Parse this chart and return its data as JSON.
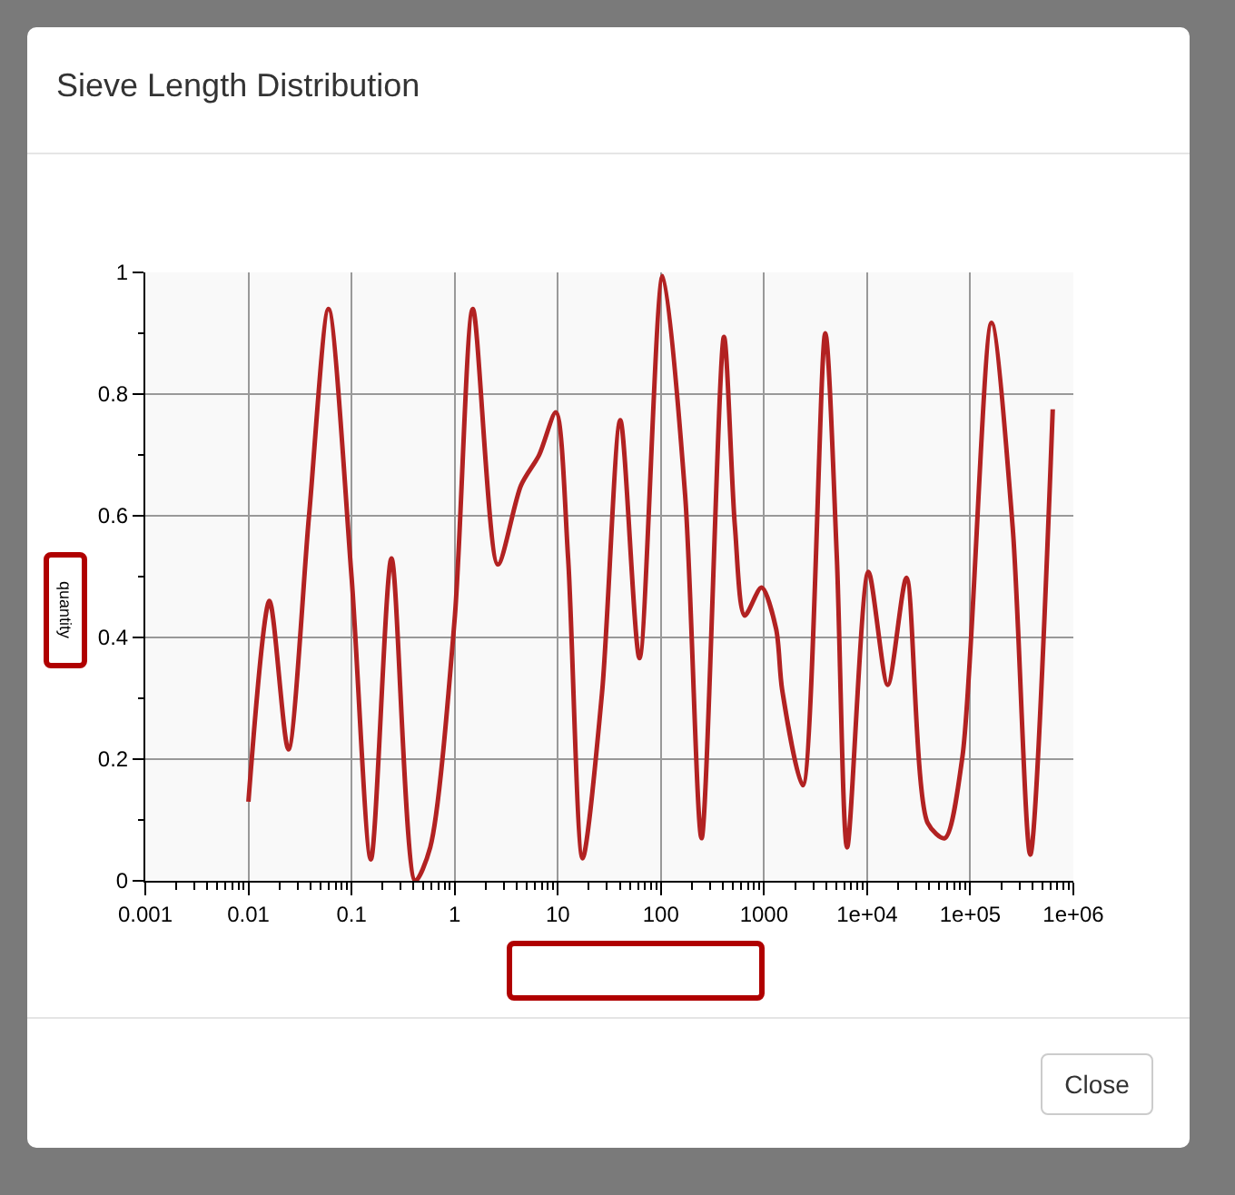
{
  "chart_data": {
    "type": "line",
    "title": "Sieve Length Distribution",
    "ylabel": "quantity",
    "x": [
      0.01,
      0.016,
      0.0244,
      0.0387,
      0.0598,
      0.1,
      0.154,
      0.244,
      0.415,
      0.58,
      1,
      1.5,
      2.62,
      4.4,
      6.6,
      9.6,
      12.6,
      17.4,
      26.9,
      40.4,
      62,
      104,
      172,
      248,
      409,
      522,
      649,
      947,
      1311,
      1500,
      2377,
      3928,
      5082,
      6397,
      10280,
      15850,
      24100,
      38700,
      56600,
      84000,
      160700,
      258000,
      382000,
      631000
    ],
    "series": [
      {
        "color": "#b22222",
        "values": [
          0.13,
          0.46,
          0.216,
          0.6,
          0.94,
          0.5,
          0.035,
          0.53,
          0.0,
          0.055,
          0.43,
          0.94,
          0.52,
          0.65,
          0.7,
          0.77,
          0.53,
          0.037,
          0.31,
          0.757,
          0.366,
          0.994,
          0.633,
          0.07,
          0.894,
          0.583,
          0.436,
          0.482,
          0.414,
          0.314,
          0.157,
          0.9,
          0.533,
          0.055,
          0.508,
          0.322,
          0.498,
          0.095,
          0.07,
          0.204,
          0.917,
          0.581,
          0.043,
          0.775
        ]
      }
    ],
    "log": "x",
    "xlim": [
      0.001,
      1000000
    ],
    "xticks": [
      0.001,
      0.01,
      0.1,
      1,
      10,
      100,
      1000,
      {
        "value": 10000,
        "label": "1e+04"
      },
      {
        "value": 100000,
        "label": "1e+05"
      },
      {
        "value": 1000000,
        "label": "1e+06"
      }
    ],
    "ylim": [
      0,
      1
    ],
    "yticks": [
      0,
      0.2,
      0.4,
      0.6,
      0.8,
      1
    ],
    "grid": true,
    "marker": "none",
    "line_style": "solid",
    "annotations": [
      "Close"
    ]
  }
}
